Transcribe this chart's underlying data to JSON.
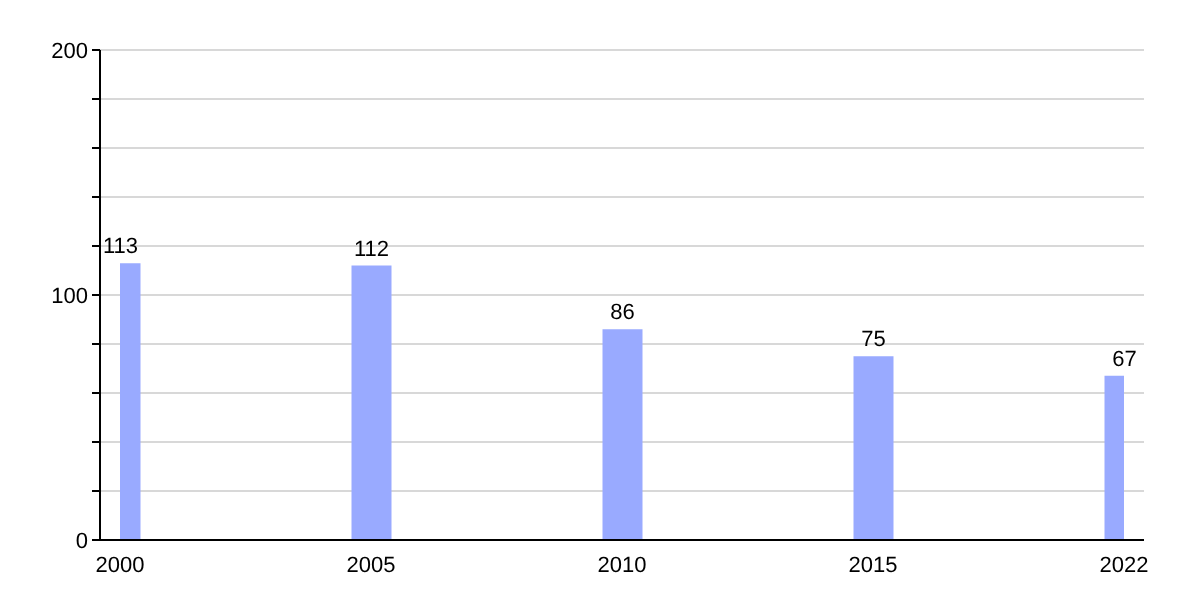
{
  "chart_data": {
    "type": "bar",
    "categories": [
      "2000",
      "2005",
      "2010",
      "2015",
      "2022"
    ],
    "values": [
      113,
      112,
      86,
      75,
      67
    ],
    "color": "#99aaff",
    "ylim": [
      0,
      200
    ],
    "yticks": [
      0,
      {
        "value": 20,
        "label": null
      },
      {
        "value": 40,
        "label": null
      },
      {
        "value": 60,
        "label": null
      },
      {
        "value": 80,
        "label": null
      },
      100,
      {
        "value": 120,
        "label": null
      },
      {
        "value": 140,
        "label": null
      },
      {
        "value": 160,
        "label": null
      },
      {
        "value": 180,
        "label": null
      },
      200
    ],
    "grid": "y",
    "data_labels": true
  }
}
